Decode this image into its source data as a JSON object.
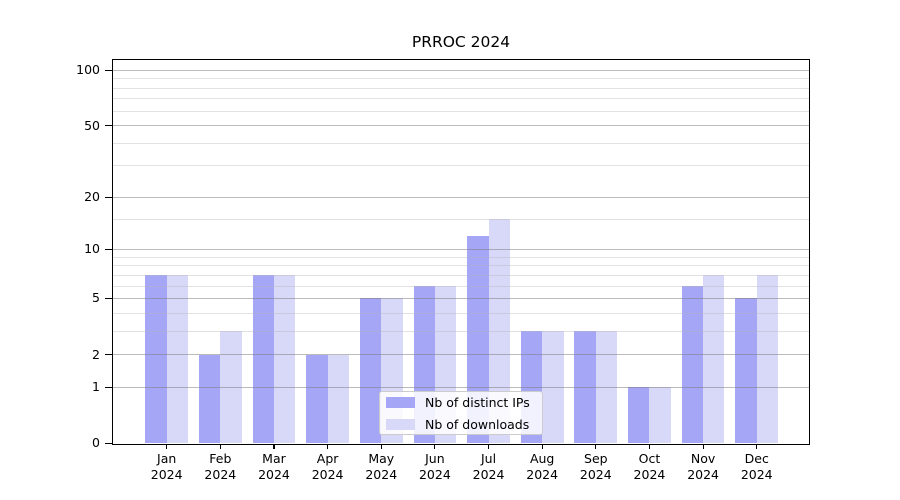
{
  "chart_data": {
    "type": "bar",
    "title": "PRROC 2024",
    "scale": "log10(value+1)",
    "categories": [
      "Jan",
      "Feb",
      "Mar",
      "Apr",
      "May",
      "Jun",
      "Jul",
      "Aug",
      "Sep",
      "Oct",
      "Nov",
      "Dec"
    ],
    "year": "2024",
    "series": [
      {
        "name": "Nb of distinct IPs",
        "color": "#a6a6f6",
        "values": [
          7,
          2,
          7,
          2,
          5,
          6,
          12,
          3,
          3,
          1,
          6,
          5
        ]
      },
      {
        "name": "Nb of downloads",
        "color": "#d8d8f8",
        "values": [
          7,
          3,
          7,
          2,
          5,
          6,
          15,
          3,
          3,
          1,
          7,
          7
        ]
      }
    ],
    "yticks": [
      0,
      1,
      2,
      5,
      10,
      20,
      50,
      100
    ],
    "minor_yticks": [
      3,
      4,
      6,
      7,
      8,
      9,
      15,
      30,
      40,
      60,
      70,
      80,
      90
    ],
    "ylim": [
      0,
      115
    ],
    "grid": true,
    "legend_position": "lower-center-inside",
    "colors": {
      "bar_dark": "#a6a6f6",
      "bar_light": "#d8d8f8",
      "grid_major": "#bcbcbc",
      "grid_minor": "#e3e3e3",
      "spine": "#000000",
      "background": "#ffffff"
    }
  }
}
